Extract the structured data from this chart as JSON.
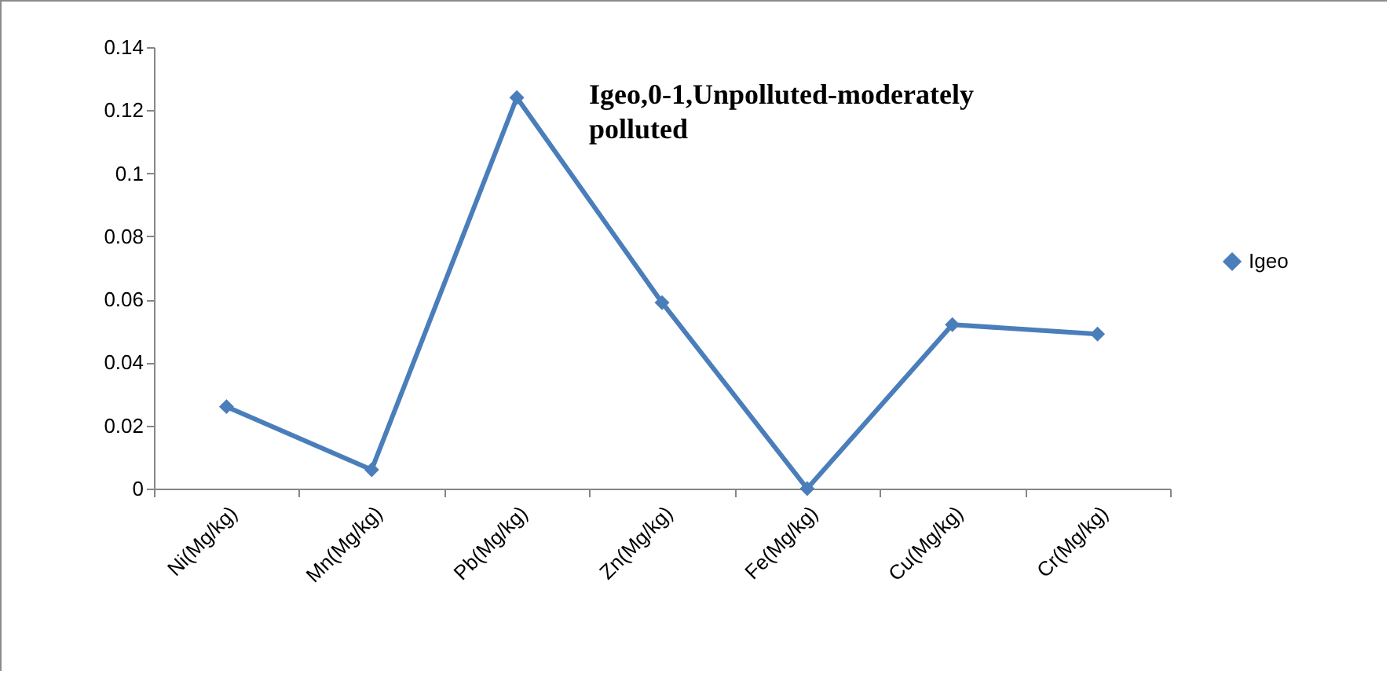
{
  "chart_data": {
    "type": "line",
    "categories": [
      "Ni(Mg/kg)",
      "Mn(Mg/kg)",
      "Pb(Mg/kg)",
      "Zn(Mg/kg)",
      "Fe(Mg/kg)",
      "Cu(Mg/kg)",
      "Cr(Mg/kg)"
    ],
    "series": [
      {
        "name": "Igeo",
        "color": "#4a7ebb",
        "values": [
          0.026,
          0.006,
          0.124,
          0.059,
          0,
          0.052,
          0.049
        ]
      }
    ],
    "ylim": [
      0,
      0.14
    ],
    "yticks": [
      0,
      0.02,
      0.04,
      0.06,
      0.08,
      0.1,
      0.12,
      0.14
    ],
    "annotations": [
      "Igeo,0-1,Unpolluted-moderately polluted"
    ],
    "marker": "diamond",
    "line_style": "solid",
    "legend": "right",
    "grid": false
  }
}
